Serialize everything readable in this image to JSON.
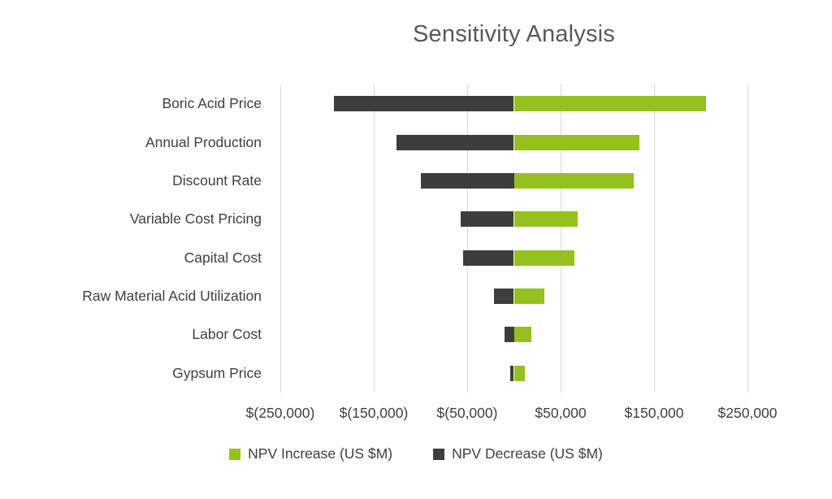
{
  "chart_data": {
    "type": "bar",
    "subtype": "horizontal-tornado",
    "title": "Sensitivity Analysis",
    "categories": [
      "Boric Acid Price",
      "Annual Production",
      "Discount Rate",
      "Variable Cost Pricing",
      "Capital Cost",
      "Raw Material Acid Utilization",
      "Labor Cost",
      "Gypsum Price"
    ],
    "series": [
      {
        "name": "NPV Increase (US $M)",
        "color": "#95C11F",
        "values": [
          206000,
          134000,
          128000,
          68000,
          65000,
          33000,
          19000,
          12000
        ]
      },
      {
        "name": "NPV Decrease (US $M)",
        "color": "#3D3D3D",
        "values": [
          -193000,
          -126000,
          -100000,
          -57000,
          -54000,
          -21000,
          -10000,
          -4000
        ]
      }
    ],
    "x_ticks": [
      "$(250,000)",
      "$(150,000)",
      "$(50,000)",
      "$50,000",
      "$150,000",
      "$250,000"
    ],
    "x_tick_values": [
      -250000,
      -150000,
      -50000,
      50000,
      150000,
      250000
    ],
    "xlim": [
      -250000,
      250000
    ],
    "grid": true,
    "legend_position": "bottom",
    "colors": {
      "title": "#595959",
      "axis_text": "#404040",
      "gridline": "#d9d9d9",
      "background": "#ffffff"
    }
  }
}
